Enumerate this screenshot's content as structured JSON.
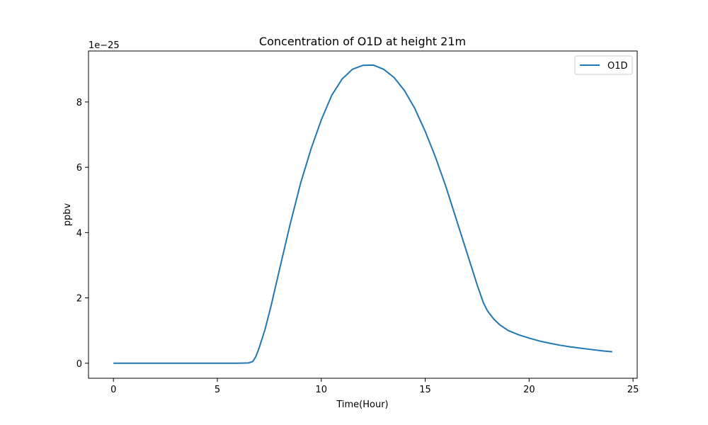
{
  "chart_data": {
    "type": "line",
    "title": "Concentration of O1D at height 21m",
    "xlabel": "Time(Hour)",
    "ylabel": "ppbv",
    "y_offset_text": "1e−25",
    "xlim": [
      -1.2,
      25.2
    ],
    "ylim": [
      -0.46,
      9.56
    ],
    "xticks": [
      0,
      5,
      10,
      15,
      20,
      25
    ],
    "yticks": [
      0,
      2,
      4,
      6,
      8
    ],
    "xtick_labels": [
      "0",
      "5",
      "10",
      "15",
      "20",
      "25"
    ],
    "ytick_labels": [
      "0",
      "2",
      "4",
      "6",
      "8"
    ],
    "grid": false,
    "legend_position": "top-right",
    "series": [
      {
        "name": "O1D",
        "color": "#1f77b4",
        "x": [
          0,
          1,
          2,
          3,
          4,
          5,
          6,
          6.5,
          6.7,
          6.85,
          7.0,
          7.3,
          7.6,
          8.0,
          8.5,
          9.0,
          9.5,
          10.0,
          10.5,
          11.0,
          11.5,
          12.0,
          12.5,
          13.0,
          13.5,
          14.0,
          14.5,
          15.0,
          15.5,
          16.0,
          16.5,
          17.0,
          17.5,
          17.8,
          18.0,
          18.3,
          18.6,
          19.0,
          19.5,
          20.0,
          20.5,
          21.0,
          21.5,
          22.0,
          22.5,
          23.0,
          23.5,
          24.0
        ],
        "y": [
          0,
          0,
          0,
          0,
          0,
          0,
          0,
          0.01,
          0.05,
          0.2,
          0.45,
          1.05,
          1.8,
          2.9,
          4.25,
          5.5,
          6.55,
          7.45,
          8.2,
          8.7,
          9.0,
          9.12,
          9.13,
          9.0,
          8.75,
          8.35,
          7.8,
          7.1,
          6.3,
          5.4,
          4.4,
          3.4,
          2.4,
          1.85,
          1.6,
          1.35,
          1.17,
          1.0,
          0.87,
          0.77,
          0.68,
          0.61,
          0.55,
          0.5,
          0.46,
          0.42,
          0.38,
          0.35
        ]
      }
    ]
  }
}
